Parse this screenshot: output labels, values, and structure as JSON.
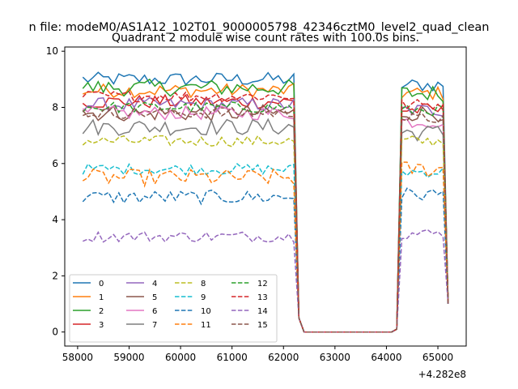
{
  "figure": {
    "suptitle": "n file: modeM0/AS1A12_102T01_9000005798_42346cztM0_level2_quad_clean",
    "title": "Quadrant 2 module wise count rates with 100.0s bins.",
    "x_offset_label": "+4.282e8"
  },
  "chart_data": {
    "type": "line",
    "title": "Quadrant 2 module wise count rates with 100.0s bins.",
    "xlabel": "",
    "ylabel": "",
    "x_offset": 428200000,
    "xlim": [
      57750,
      65550
    ],
    "ylim": [
      -0.5,
      10.15
    ],
    "xticks": [
      58000,
      59000,
      60000,
      61000,
      62000,
      63000,
      64000,
      65000
    ],
    "xtick_labels": [
      "58000",
      "59000",
      "60000",
      "61000",
      "62000",
      "63000",
      "64000",
      "65000"
    ],
    "yticks": [
      0,
      2,
      4,
      6,
      8,
      10
    ],
    "ytick_labels": [
      "0",
      "2",
      "4",
      "6",
      "8",
      "10"
    ],
    "grid": false,
    "legend": {
      "placement": "lower-left",
      "columns": 4
    },
    "segments": [
      {
        "start": 58100,
        "end": 62300,
        "step": 100
      },
      {
        "start": 64200,
        "end": 65200,
        "step": 100
      }
    ],
    "gap": {
      "start": 62400,
      "end": 64100,
      "value": 0
    },
    "series": [
      {
        "name": "0",
        "color": "#1f77b4",
        "dash": "solid",
        "level": 9.0,
        "level2": 8.8,
        "noise": 0.25
      },
      {
        "name": "1",
        "color": "#ff7f0e",
        "dash": "solid",
        "level": 8.6,
        "level2": 8.5,
        "noise": 0.25
      },
      {
        "name": "2",
        "color": "#2ca02c",
        "dash": "solid",
        "level": 8.7,
        "level2": 8.5,
        "noise": 0.3
      },
      {
        "name": "3",
        "color": "#d62728",
        "dash": "solid",
        "level": 8.2,
        "level2": 7.9,
        "noise": 0.25
      },
      {
        "name": "4",
        "color": "#9467bd",
        "dash": "solid",
        "level": 8.1,
        "level2": 7.9,
        "noise": 0.25
      },
      {
        "name": "5",
        "color": "#8c564b",
        "dash": "solid",
        "level": 7.8,
        "level2": 7.8,
        "noise": 0.3
      },
      {
        "name": "6",
        "color": "#e377c2",
        "dash": "solid",
        "level": 7.8,
        "level2": 7.5,
        "noise": 0.25
      },
      {
        "name": "7",
        "color": "#7f7f7f",
        "dash": "solid",
        "level": 7.3,
        "level2": 7.1,
        "noise": 0.3
      },
      {
        "name": "8",
        "color": "#bcbd22",
        "dash": "dashed",
        "level": 6.8,
        "level2": 6.8,
        "noise": 0.2
      },
      {
        "name": "9",
        "color": "#17becf",
        "dash": "dashed",
        "level": 5.8,
        "level2": 5.7,
        "noise": 0.2
      },
      {
        "name": "10",
        "color": "#1f77b4",
        "dash": "dashed",
        "level": 4.8,
        "level2": 4.9,
        "noise": 0.25
      },
      {
        "name": "11",
        "color": "#ff7f0e",
        "dash": "dashed",
        "level": 5.5,
        "level2": 5.8,
        "noise": 0.3
      },
      {
        "name": "12",
        "color": "#2ca02c",
        "dash": "dashed",
        "level": 8.0,
        "level2": 7.9,
        "noise": 0.2
      },
      {
        "name": "13",
        "color": "#d62728",
        "dash": "dashed",
        "level": 8.4,
        "level2": 8.1,
        "noise": 0.2
      },
      {
        "name": "14",
        "color": "#9467bd",
        "dash": "dashed",
        "level": 3.4,
        "level2": 3.5,
        "noise": 0.2
      },
      {
        "name": "15",
        "color": "#8c564b",
        "dash": "dashed",
        "level": 7.8,
        "level2": 7.6,
        "noise": 0.2
      }
    ]
  }
}
